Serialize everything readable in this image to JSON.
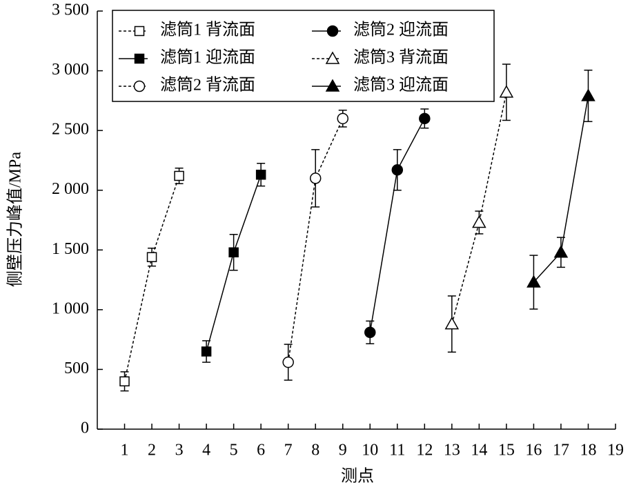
{
  "chart_data": {
    "type": "line",
    "ylabel": "侧壁压力峰值/MPa",
    "xlabel": "测点",
    "xlim": [
      0,
      19
    ],
    "xticks": [
      1,
      2,
      3,
      4,
      5,
      6,
      7,
      8,
      9,
      10,
      11,
      12,
      13,
      14,
      15,
      16,
      17,
      18,
      19
    ],
    "ylim": [
      0,
      3500
    ],
    "yticks": [
      0,
      500,
      {
        "value": 1000,
        "label": "1 000"
      },
      {
        "value": 1500,
        "label": "1 500"
      },
      {
        "value": 2000,
        "label": "2 000"
      },
      {
        "value": 2500,
        "label": "2 500"
      },
      {
        "value": 3000,
        "label": "3 000"
      },
      {
        "value": 3500,
        "label": "3 500"
      }
    ],
    "grid": false,
    "legend_position": "top",
    "series": [
      {
        "name": "滤筒1 背流面",
        "color": "#000000",
        "marker": "square",
        "filled": false,
        "line_style": "dashed",
        "x": [
          1,
          2,
          3
        ],
        "values": [
          400,
          1440,
          2120
        ],
        "errors": [
          80,
          75,
          65
        ]
      },
      {
        "name": "滤筒1 迎流面",
        "color": "#000000",
        "marker": "square",
        "filled": true,
        "line_style": "solid",
        "x": [
          4,
          5,
          6
        ],
        "values": [
          650,
          1480,
          2130
        ],
        "errors": [
          90,
          150,
          95
        ]
      },
      {
        "name": "滤筒2 背流面",
        "color": "#000000",
        "marker": "circle",
        "filled": false,
        "line_style": "dashed",
        "x": [
          7,
          8,
          9
        ],
        "values": [
          560,
          2100,
          2600
        ],
        "errors": [
          150,
          240,
          70
        ]
      },
      {
        "name": "滤筒2 迎流面",
        "color": "#000000",
        "marker": "circle",
        "filled": true,
        "line_style": "solid",
        "x": [
          10,
          11,
          12
        ],
        "values": [
          810,
          2170,
          2600
        ],
        "errors": [
          95,
          170,
          80
        ]
      },
      {
        "name": "滤筒3 背流面",
        "color": "#000000",
        "marker": "triangle",
        "filled": false,
        "line_style": "dashed",
        "x": [
          13,
          14,
          15
        ],
        "values": [
          880,
          1730,
          2820
        ],
        "errors": [
          235,
          95,
          235
        ]
      },
      {
        "name": "滤筒3 迎流面",
        "color": "#000000",
        "marker": "triangle",
        "filled": true,
        "line_style": "solid",
        "x": [
          16,
          17,
          18
        ],
        "values": [
          1230,
          1480,
          2790
        ],
        "errors": [
          225,
          125,
          215
        ]
      }
    ]
  }
}
